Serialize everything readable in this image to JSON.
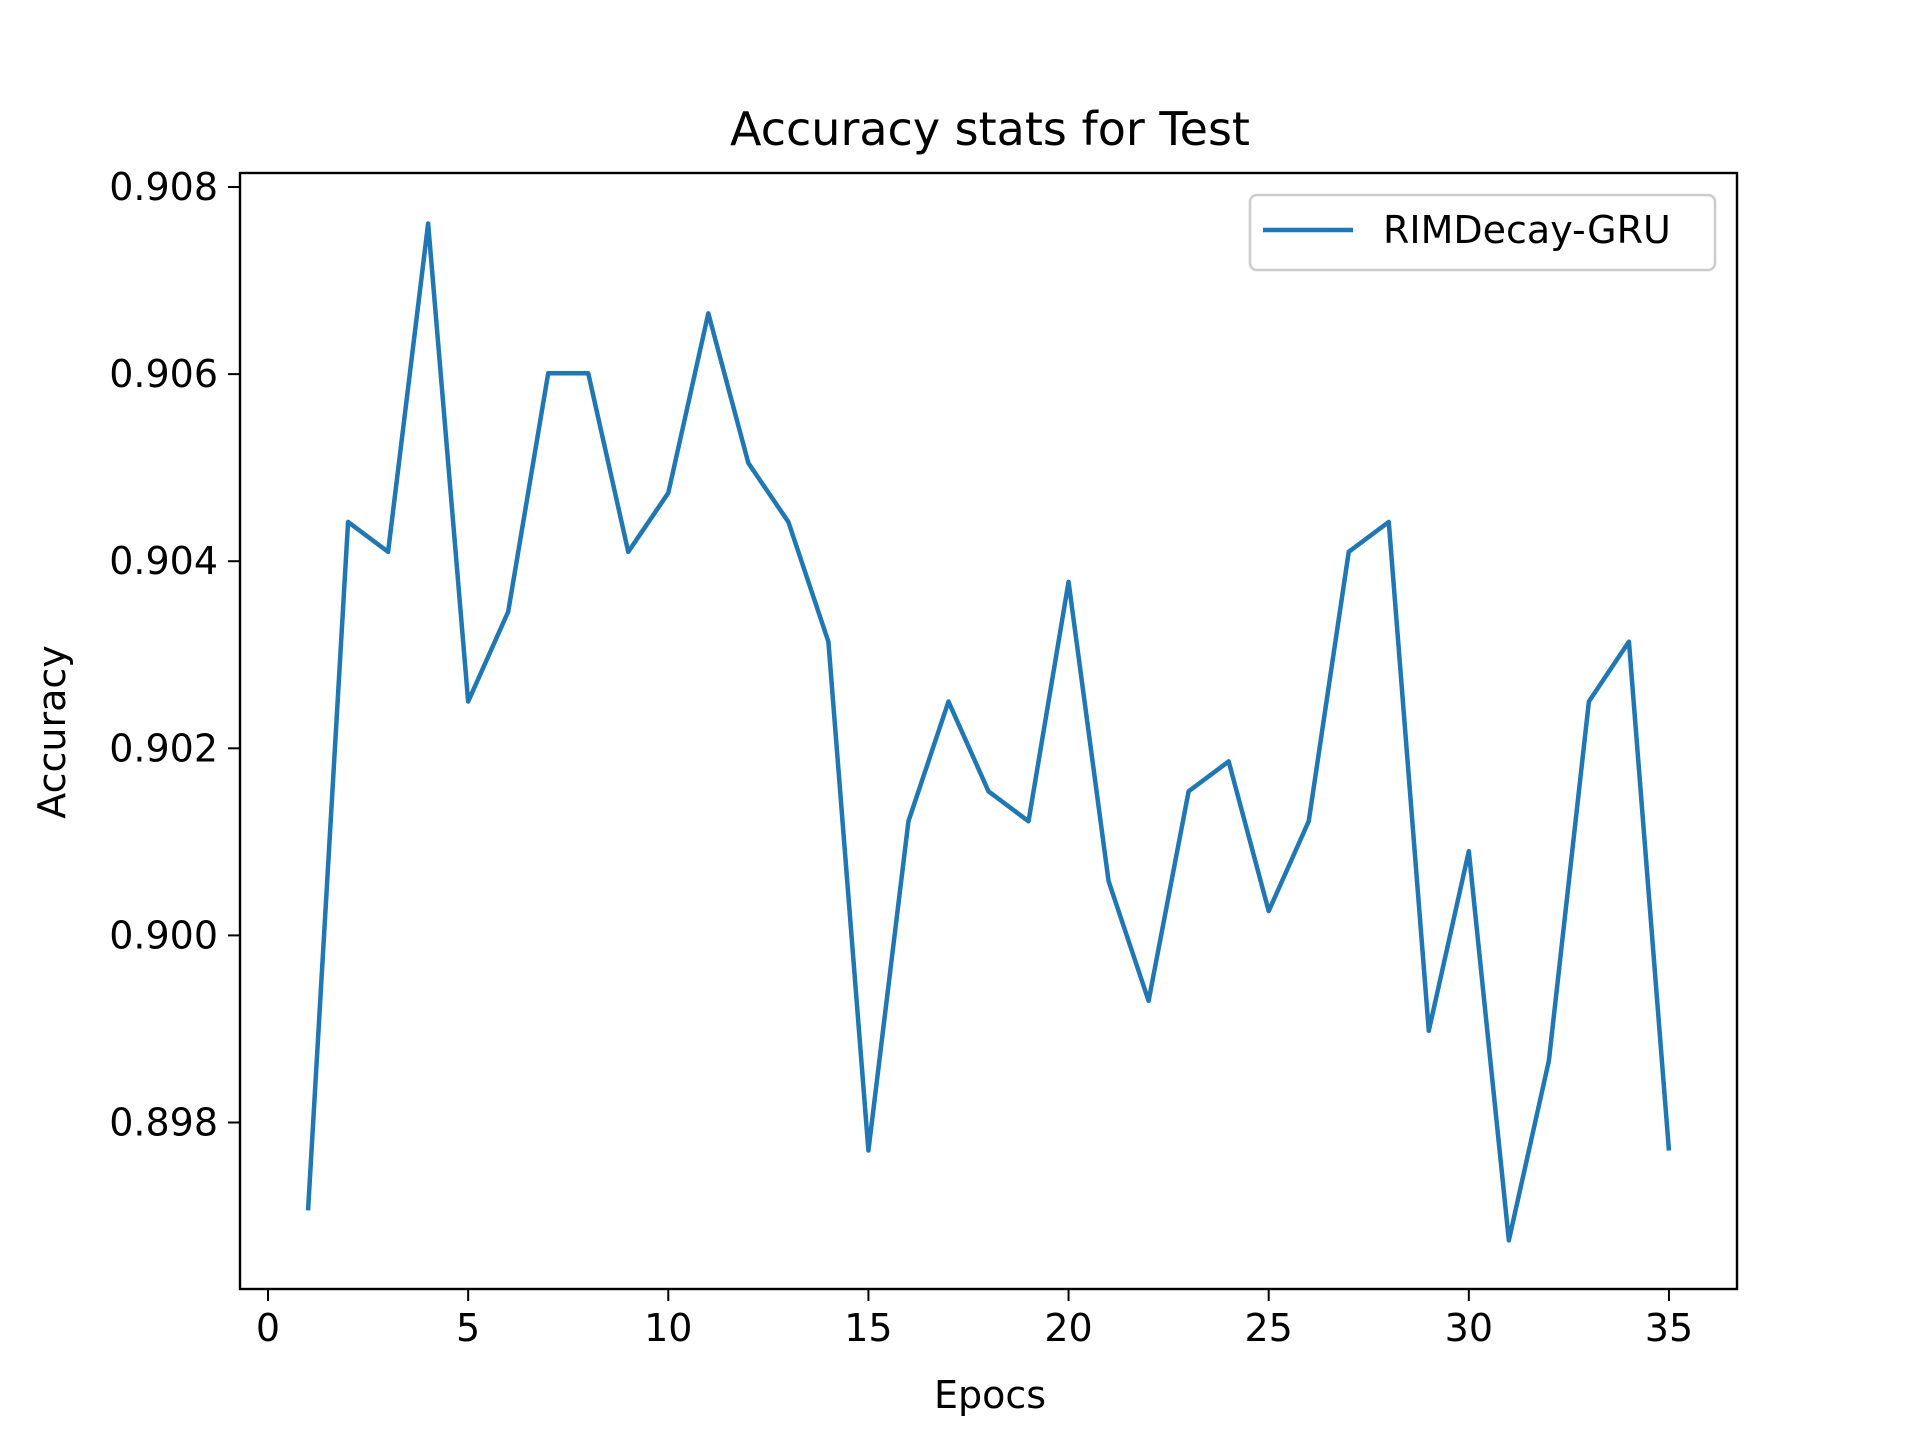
{
  "chart_data": {
    "type": "line",
    "title": "Accuracy stats for Test",
    "xlabel": "Epocs",
    "ylabel": "Accuracy",
    "xlim": [
      -0.7,
      36.7
    ],
    "ylim": [
      0.89622,
      0.90815
    ],
    "xticks": [
      0,
      5,
      10,
      15,
      20,
      25,
      30,
      35
    ],
    "yticks": [
      0.898,
      0.9,
      0.902,
      0.904,
      0.906,
      0.908
    ],
    "xtick_labels": [
      "0",
      "5",
      "10",
      "15",
      "20",
      "25",
      "30",
      "35"
    ],
    "ytick_labels": [
      "0.898",
      "0.900",
      "0.902",
      "0.904",
      "0.906",
      "0.908"
    ],
    "grid": false,
    "legend_position": "top-right",
    "series": [
      {
        "name": "RIMDecay-GRU",
        "color": "#1f77b4",
        "x": [
          1,
          2,
          3,
          4,
          5,
          6,
          7,
          8,
          9,
          10,
          11,
          12,
          13,
          14,
          15,
          16,
          17,
          18,
          19,
          20,
          21,
          22,
          23,
          24,
          25,
          26,
          27,
          28,
          29,
          30,
          31,
          32,
          33,
          34,
          35
        ],
        "y": [
          0.89706,
          0.90442,
          0.9041,
          0.90761,
          0.9025,
          0.90346,
          0.90601,
          0.90601,
          0.9041,
          0.90473,
          0.90665,
          0.90505,
          0.90442,
          0.90314,
          0.8977,
          0.90122,
          0.9025,
          0.90154,
          0.90122,
          0.90378,
          0.90058,
          0.8993,
          0.90154,
          0.90186,
          0.90026,
          0.90122,
          0.9041,
          0.90442,
          0.89898,
          0.9009,
          0.89674,
          0.89866,
          0.9025,
          0.90314,
          0.8977
        ]
      }
    ]
  }
}
